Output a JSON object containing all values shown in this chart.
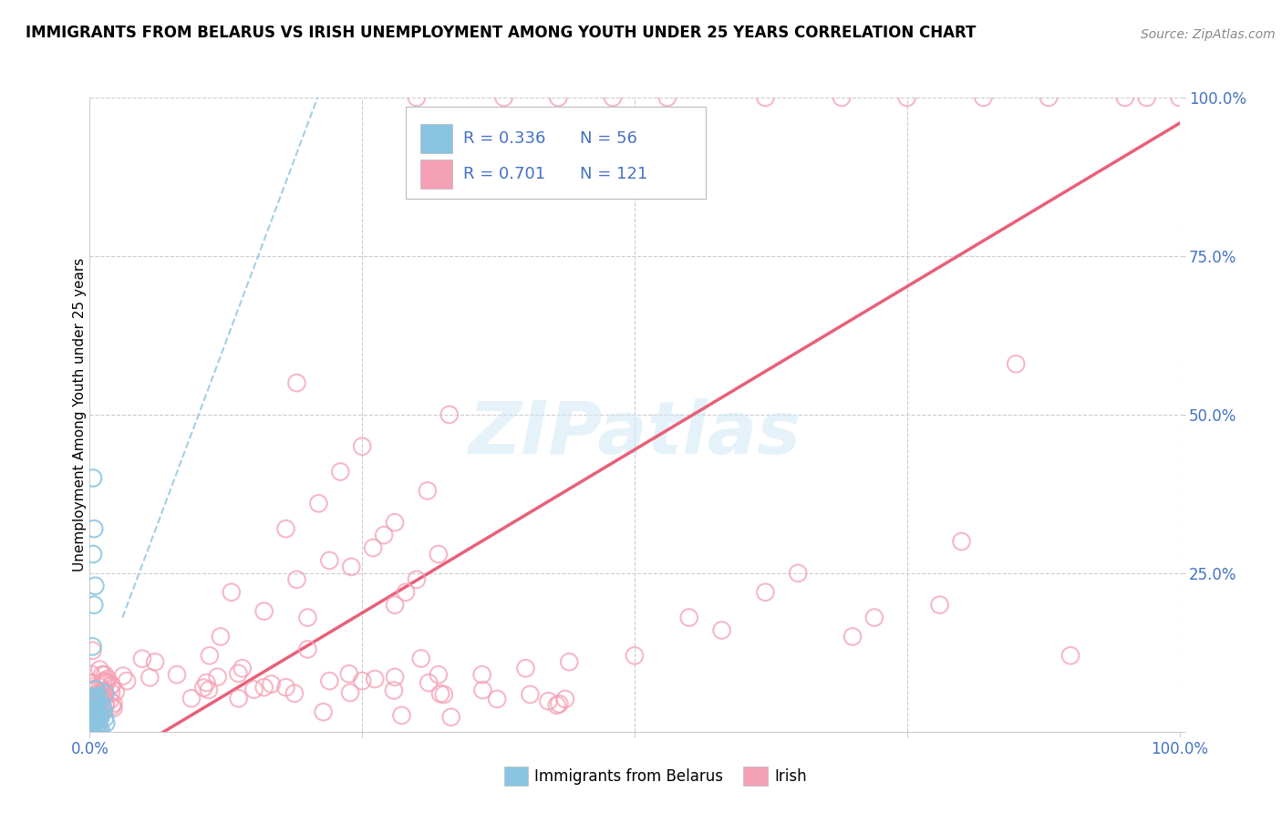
{
  "title": "IMMIGRANTS FROM BELARUS VS IRISH UNEMPLOYMENT AMONG YOUTH UNDER 25 YEARS CORRELATION CHART",
  "source": "Source: ZipAtlas.com",
  "ylabel": "Unemployment Among Youth under 25 years",
  "r1": 0.336,
  "n1": 56,
  "r2": 0.701,
  "n2": 121,
  "color_blue": "#89c4e1",
  "color_pink": "#f4a0b5",
  "color_blue_line": "#89c4e1",
  "color_pink_line": "#e8607a",
  "watermark_text": "ZIPatlas",
  "legend_label_1": "Immigrants from Belarus",
  "legend_label_2": "Irish"
}
